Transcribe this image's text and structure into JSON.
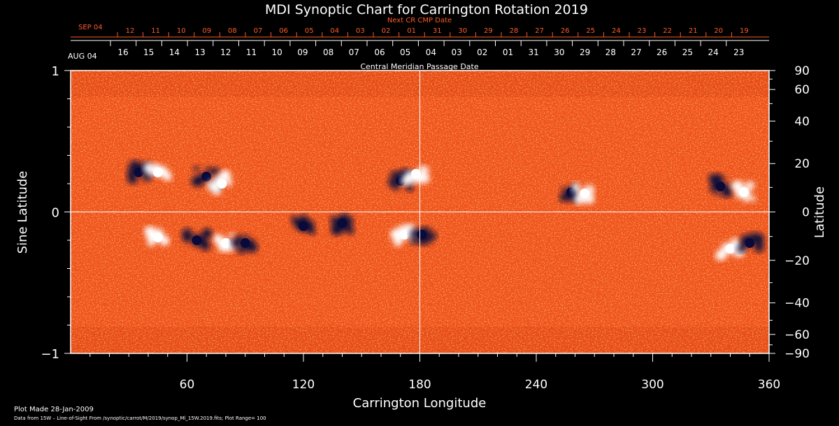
{
  "chart_data": {
    "type": "heatmap",
    "title": "MDI Synoptic Chart for Carrington Rotation 2019",
    "xlabel": "Carrington Longitude",
    "ylabel_left": "Sine Latitude",
    "ylabel_right": "Latitude",
    "xlim": [
      0,
      360
    ],
    "ylim": [
      -1,
      1
    ],
    "x_ticks": [
      60,
      120,
      180,
      240,
      300,
      360
    ],
    "y_ticks_left": [
      "1",
      "0",
      "−1"
    ],
    "y_ticks_right": [
      90,
      60,
      40,
      20,
      0,
      -20,
      -40,
      -60,
      -90
    ],
    "y_ticks_right_labels": [
      "90",
      "60",
      "40",
      "20",
      "0",
      "−20",
      "−40",
      "−60",
      "−90"
    ],
    "crosshair": {
      "longitude": 180,
      "sine_latitude": 0
    },
    "next_cr_label": "Next CR CMP Date",
    "next_cr_month": "SEP 04",
    "next_cr_dates": [
      "12",
      "11",
      "10",
      "09",
      "08",
      "07",
      "06",
      "05",
      "04",
      "03",
      "02",
      "01",
      "31",
      "30",
      "29",
      "28",
      "27",
      "26",
      "25",
      "24",
      "23",
      "22",
      "21",
      "20",
      "19"
    ],
    "cmp_label": "Central Meridian Passage Date",
    "cmp_month": "AUG 04",
    "cmp_dates": [
      "16",
      "15",
      "14",
      "13",
      "12",
      "11",
      "10",
      "09",
      "08",
      "07",
      "06",
      "05",
      "04",
      "03",
      "02",
      "01",
      "31",
      "30",
      "29",
      "28",
      "27",
      "26",
      "25",
      "24",
      "23"
    ],
    "active_regions": [
      {
        "lon": 80,
        "sinlat": -0.22,
        "polarity": "positive"
      },
      {
        "lon": 90,
        "sinlat": -0.22,
        "polarity": "negative"
      },
      {
        "lon": 65,
        "sinlat": -0.2,
        "polarity": "negative"
      },
      {
        "lon": 45,
        "sinlat": -0.18,
        "polarity": "positive"
      },
      {
        "lon": 35,
        "sinlat": 0.28,
        "polarity": "negative"
      },
      {
        "lon": 45,
        "sinlat": 0.28,
        "polarity": "positive"
      },
      {
        "lon": 70,
        "sinlat": 0.25,
        "polarity": "negative"
      },
      {
        "lon": 78,
        "sinlat": 0.2,
        "polarity": "positive"
      },
      {
        "lon": 170,
        "sinlat": 0.22,
        "polarity": "negative"
      },
      {
        "lon": 178,
        "sinlat": 0.27,
        "polarity": "positive"
      },
      {
        "lon": 172,
        "sinlat": -0.16,
        "polarity": "positive"
      },
      {
        "lon": 181,
        "sinlat": -0.16,
        "polarity": "negative"
      },
      {
        "lon": 258,
        "sinlat": 0.14,
        "polarity": "negative"
      },
      {
        "lon": 265,
        "sinlat": 0.13,
        "polarity": "positive"
      },
      {
        "lon": 335,
        "sinlat": 0.18,
        "polarity": "negative"
      },
      {
        "lon": 347,
        "sinlat": 0.14,
        "polarity": "positive"
      },
      {
        "lon": 340,
        "sinlat": -0.26,
        "polarity": "positive"
      },
      {
        "lon": 350,
        "sinlat": -0.22,
        "polarity": "negative"
      },
      {
        "lon": 120,
        "sinlat": -0.1,
        "polarity": "negative"
      },
      {
        "lon": 140,
        "sinlat": -0.08,
        "polarity": "negative"
      }
    ]
  },
  "footer": {
    "plot_made": "Plot Made 28-Jan-2009",
    "data_source": "Data from 15W – Line-of-Sight From /synoptic/carrot/M/2019/synop_Ml_15W.2019.fits; Plot Range=  100"
  },
  "colors": {
    "background": "#000000",
    "field_base": "#f2521a",
    "positive": "#ffffff",
    "negative": "#0a0a3a",
    "upper_axis_text": "#ff5a28"
  }
}
